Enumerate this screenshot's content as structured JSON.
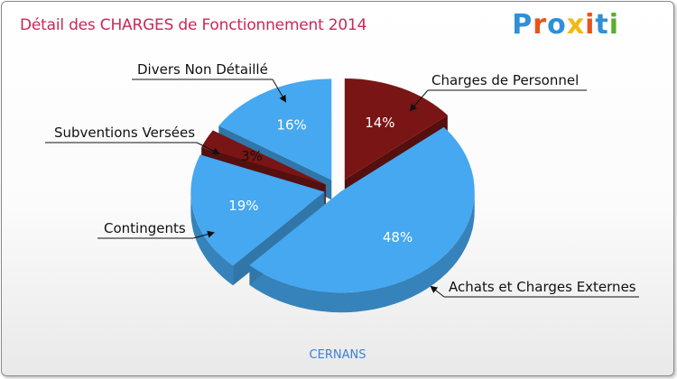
{
  "title": "Détail des CHARGES de Fonctionnement 2014",
  "logo": {
    "text": "Proxiti",
    "letter_colors": [
      "#2f8fd8",
      "#e8541c",
      "#2f8fd8",
      "#f2b90f",
      "#e8541c",
      "#2f8fd8",
      "#5aae2e"
    ]
  },
  "commune": "CERNANS",
  "chart_data": {
    "type": "pie",
    "title": "Détail des CHARGES de Fonctionnement 2014",
    "slices": [
      {
        "label": "Charges de Personnel",
        "value": 14,
        "value_label": "14%",
        "color": "#7a1515"
      },
      {
        "label": "Achats et Charges Externes",
        "value": 48,
        "value_label": "48%",
        "color": "#45a8f0"
      },
      {
        "label": "Contingents",
        "value": 19,
        "value_label": "19%",
        "color": "#45a8f0"
      },
      {
        "label": "Subventions Versées",
        "value": 3,
        "value_label": "3%",
        "color": "#7a1515"
      },
      {
        "label": "Divers Non Détaillé",
        "value": 16,
        "value_label": "16%",
        "color": "#45a8f0"
      }
    ]
  }
}
